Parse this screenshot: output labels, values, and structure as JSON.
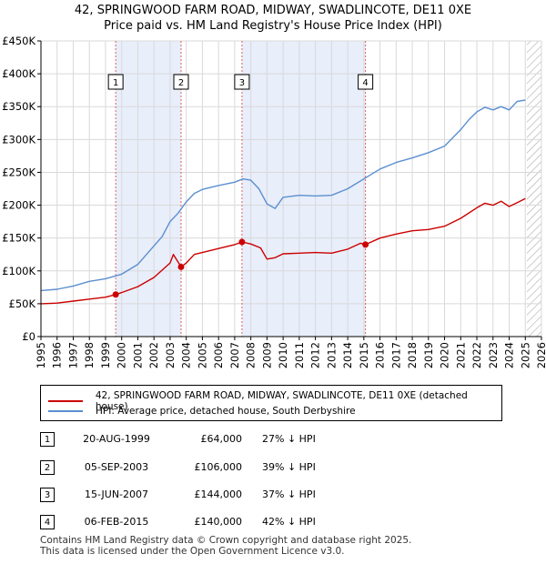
{
  "title_line1": "42, SPRINGWOOD FARM ROAD, MIDWAY, SWADLINCOTE, DE11 0XE",
  "title_line2": "Price paid vs. HM Land Registry's House Price Index (HPI)",
  "colors": {
    "red": "#cc0000",
    "blue": "#5b8fd0",
    "shade": "#e8eefa",
    "grid": "#d9d9d9",
    "marker": "#cc0000"
  },
  "chart_data": {
    "type": "line",
    "title": "42, SPRINGWOOD FARM ROAD, MIDWAY, SWADLINCOTE, DE11 0XE - Price paid vs. HM Land Registry's House Price Index (HPI)",
    "xlim": [
      1995.0,
      2026.0
    ],
    "ylim": [
      0,
      450000
    ],
    "y_ticks": [
      0,
      50000,
      100000,
      150000,
      200000,
      250000,
      300000,
      350000,
      400000,
      450000
    ],
    "y_tick_labels": [
      "£0",
      "£50K",
      "£100K",
      "£150K",
      "£200K",
      "£250K",
      "£300K",
      "£350K",
      "£400K",
      "£450K"
    ],
    "x_ticks": [
      1995,
      1996,
      1997,
      1998,
      1999,
      2000,
      2001,
      2002,
      2003,
      2004,
      2005,
      2006,
      2007,
      2008,
      2009,
      2010,
      2011,
      2012,
      2013,
      2014,
      2015,
      2016,
      2017,
      2018,
      2019,
      2020,
      2021,
      2022,
      2023,
      2024,
      2025,
      2026
    ],
    "x_tick_labels": [
      "1995",
      "1996",
      "1997",
      "1998",
      "1999",
      "2000",
      "2001",
      "2002",
      "2003",
      "2004",
      "2005",
      "2006",
      "2007",
      "2008",
      "2009",
      "2010",
      "2011",
      "2012",
      "2013",
      "2014",
      "2015",
      "2016",
      "2017",
      "2018",
      "2019",
      "2020",
      "2021",
      "2022",
      "2023",
      "2024",
      "2025",
      "2026"
    ],
    "future_hatch_from": 2025.1,
    "shaded_ranges": [
      [
        1999.63,
        2003.68
      ],
      [
        2007.45,
        2015.1
      ]
    ],
    "series": [
      {
        "name": "42, SPRINGWOOD FARM ROAD, MIDWAY, SWADLINCOTE, DE11 0XE (detached house)",
        "color": "#cc0000",
        "x": [
          1995.0,
          1996.0,
          1997.0,
          1998.0,
          1999.0,
          1999.63,
          2000.0,
          2001.0,
          2002.0,
          2003.0,
          2003.2,
          2003.68,
          2004.0,
          2004.5,
          2005.0,
          2006.0,
          2007.0,
          2007.45,
          2008.0,
          2008.6,
          2009.0,
          2009.5,
          2010.0,
          2011.0,
          2012.0,
          2013.0,
          2014.0,
          2014.8,
          2015.1,
          2016.0,
          2017.0,
          2018.0,
          2019.0,
          2020.0,
          2021.0,
          2022.0,
          2022.5,
          2023.0,
          2023.5,
          2024.0,
          2024.5,
          2025.0
        ],
        "y": [
          50000,
          51000,
          54000,
          57000,
          60000,
          64000,
          67000,
          76000,
          90000,
          112000,
          125000,
          106000,
          112000,
          125000,
          128000,
          134000,
          140000,
          144000,
          141000,
          135000,
          118000,
          120000,
          126000,
          127000,
          128000,
          127000,
          133000,
          142000,
          140000,
          150000,
          156000,
          161000,
          163000,
          168000,
          180000,
          196000,
          203000,
          200000,
          206000,
          198000,
          204000,
          210000
        ]
      },
      {
        "name": "HPI: Average price, detached house, South Derbyshire",
        "color": "#5b8fd0",
        "x": [
          1995.0,
          1996.0,
          1997.0,
          1998.0,
          1999.0,
          2000.0,
          2001.0,
          2002.0,
          2002.5,
          2003.0,
          2003.5,
          2004.0,
          2004.5,
          2005.0,
          2006.0,
          2007.0,
          2007.5,
          2008.0,
          2008.5,
          2009.0,
          2009.5,
          2010.0,
          2011.0,
          2012.0,
          2013.0,
          2014.0,
          2015.0,
          2016.0,
          2017.0,
          2018.0,
          2019.0,
          2020.0,
          2021.0,
          2021.5,
          2022.0,
          2022.5,
          2023.0,
          2023.5,
          2024.0,
          2024.5,
          2025.0
        ],
        "y": [
          70000,
          72000,
          77000,
          84000,
          88000,
          95000,
          110000,
          138000,
          152000,
          175000,
          188000,
          205000,
          218000,
          224000,
          230000,
          235000,
          240000,
          238000,
          225000,
          202000,
          195000,
          212000,
          215000,
          214000,
          215000,
          225000,
          240000,
          255000,
          265000,
          272000,
          280000,
          290000,
          315000,
          330000,
          342000,
          349000,
          345000,
          350000,
          345000,
          358000,
          360000
        ]
      }
    ],
    "sale_markers": [
      {
        "label": "1",
        "x": 1999.63,
        "y": 64000
      },
      {
        "label": "2",
        "x": 2003.68,
        "y": 106000
      },
      {
        "label": "3",
        "x": 2007.45,
        "y": 144000
      },
      {
        "label": "4",
        "x": 2015.1,
        "y": 140000
      }
    ]
  },
  "legend": {
    "red_label": "42, SPRINGWOOD FARM ROAD, MIDWAY, SWADLINCOTE, DE11 0XE (detached house)",
    "blue_label": "HPI: Average price, detached house, South Derbyshire"
  },
  "transactions": [
    {
      "num": "1",
      "date": "20-AUG-1999",
      "price": "£64,000",
      "hpi": "27% ↓ HPI"
    },
    {
      "num": "2",
      "date": "05-SEP-2003",
      "price": "£106,000",
      "hpi": "39% ↓ HPI"
    },
    {
      "num": "3",
      "date": "15-JUN-2007",
      "price": "£144,000",
      "hpi": "37% ↓ HPI"
    },
    {
      "num": "4",
      "date": "06-FEB-2015",
      "price": "£140,000",
      "hpi": "42% ↓ HPI"
    }
  ],
  "footer": {
    "line1": "Contains HM Land Registry data © Crown copyright and database right 2025.",
    "line2": "This data is licensed under the Open Government Licence v3.0."
  }
}
